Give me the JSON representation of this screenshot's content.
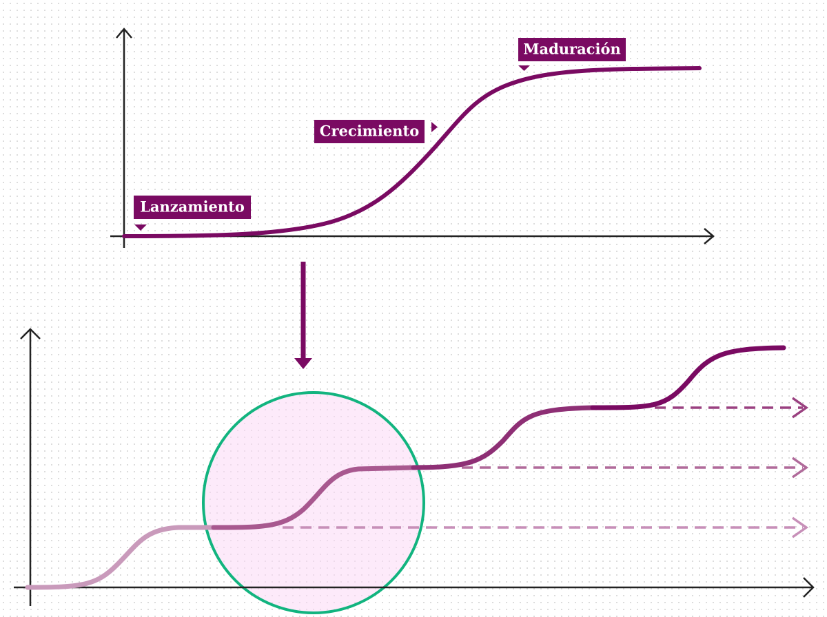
{
  "labels": [
    "Lanzamiento",
    "Crecimiento",
    "Maduración"
  ]
}
